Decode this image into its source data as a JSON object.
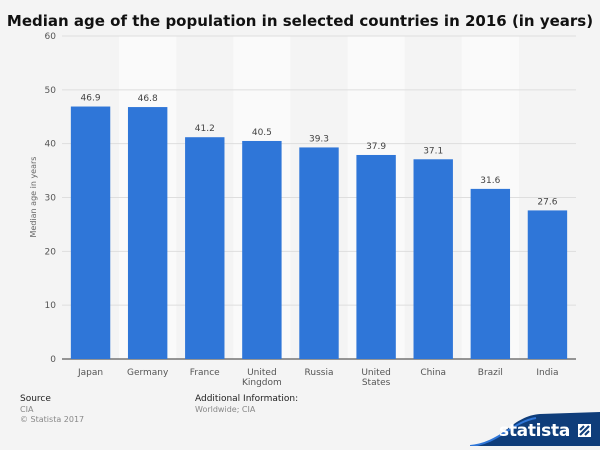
{
  "chart_data": {
    "type": "bar",
    "title": "Median age of the population in selected countries in 2016 (in years)",
    "ylabel": "Median age in years",
    "xlabel": "",
    "ylim": [
      0,
      60
    ],
    "yticks": [
      0,
      10,
      20,
      30,
      40,
      50,
      60
    ],
    "grid": true,
    "categories": [
      "Japan",
      "Germany",
      "France",
      "United Kingdom",
      "Russia",
      "United States",
      "China",
      "Brazil",
      "India"
    ],
    "category_lines": [
      [
        "Japan"
      ],
      [
        "Germany"
      ],
      [
        "France"
      ],
      [
        "United",
        "Kingdom"
      ],
      [
        "Russia"
      ],
      [
        "United",
        "States"
      ],
      [
        "China"
      ],
      [
        "Brazil"
      ],
      [
        "India"
      ]
    ],
    "values": [
      46.9,
      46.8,
      41.2,
      40.5,
      39.3,
      37.9,
      37.1,
      31.6,
      27.6
    ],
    "value_labels": [
      "46.9",
      "46.8",
      "41.2",
      "40.5",
      "39.3",
      "37.9",
      "37.1",
      "31.6",
      "27.6"
    ],
    "bar_color": "#2f76d8"
  },
  "footer": {
    "source_heading": "Source",
    "source_value": "CIA",
    "copyright": "© Statista 2017",
    "additional_heading": "Additional Information:",
    "additional_value": "Worldwide; CIA"
  },
  "brand": {
    "name": "statista",
    "color": "#0f3d7a"
  }
}
